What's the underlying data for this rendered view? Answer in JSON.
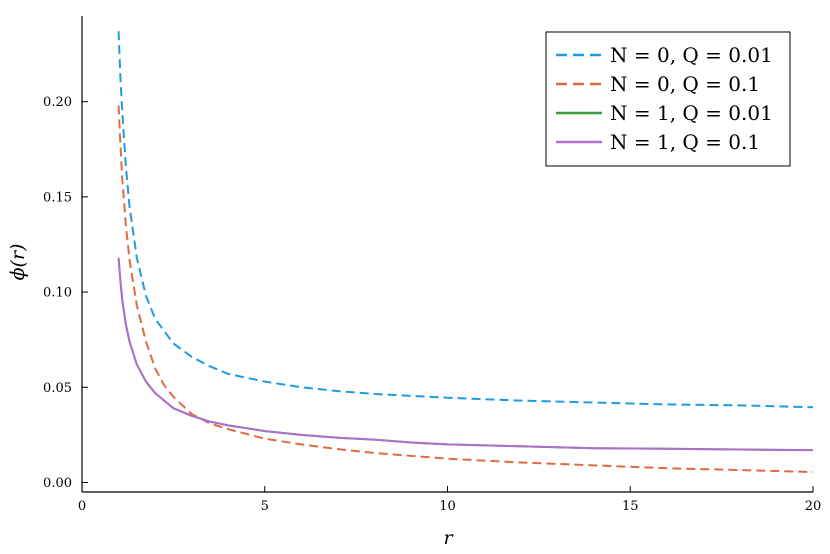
{
  "chart_data": {
    "type": "line",
    "title": "",
    "xlabel": "r",
    "ylabel": "ϕ(r)",
    "xlim": [
      0,
      20
    ],
    "ylim": [
      -0.005,
      0.245
    ],
    "xticks": [
      0,
      5,
      10,
      15,
      20
    ],
    "xtick_labels": [
      "0",
      "5",
      "10",
      "15",
      "20"
    ],
    "yticks": [
      0.0,
      0.05,
      0.1,
      0.15,
      0.2
    ],
    "ytick_labels": [
      "0.00",
      "0.05",
      "0.10",
      "0.15",
      "0.20"
    ],
    "grid": false,
    "legend_position": "top-right",
    "series": [
      {
        "name": "N = 0, Q = 0.01",
        "color": "#1f9be0",
        "dash": "dashed",
        "x": [
          1.0,
          1.05,
          1.1,
          1.2,
          1.3,
          1.5,
          1.75,
          2.0,
          2.5,
          3.0,
          3.5,
          4.0,
          5.0,
          6.0,
          7.0,
          8.0,
          9.0,
          10.0,
          12.0,
          14.0,
          16.0,
          18.0,
          20.0
        ],
        "y": [
          0.237,
          0.213,
          0.195,
          0.166,
          0.145,
          0.118,
          0.098,
          0.086,
          0.073,
          0.066,
          0.061,
          0.057,
          0.053,
          0.05,
          0.048,
          0.0465,
          0.0455,
          0.0445,
          0.043,
          0.042,
          0.041,
          0.0405,
          0.0395
        ]
      },
      {
        "name": "N = 0, Q = 0.1",
        "color": "#e06a43",
        "dash": "dashed",
        "x": [
          1.0,
          1.05,
          1.1,
          1.2,
          1.3,
          1.5,
          1.75,
          2.0,
          2.25,
          2.5,
          3.0,
          3.5,
          4.0,
          5.0,
          6.0,
          7.0,
          8.0,
          9.0,
          10.0,
          12.0,
          14.0,
          16.0,
          18.0,
          20.0
        ],
        "y": [
          0.198,
          0.178,
          0.16,
          0.135,
          0.117,
          0.093,
          0.074,
          0.06,
          0.051,
          0.045,
          0.036,
          0.031,
          0.028,
          0.023,
          0.02,
          0.0175,
          0.0155,
          0.014,
          0.0125,
          0.0105,
          0.009,
          0.0075,
          0.0065,
          0.0055
        ]
      },
      {
        "name": "N = 1, Q = 0.01",
        "color": "#3a9e3a",
        "dash": "solid",
        "x": [
          1.0,
          1.05,
          1.1,
          1.2,
          1.3,
          1.5,
          1.75,
          2.0,
          2.5,
          3.0,
          3.5,
          4.0,
          5.0,
          6.0,
          7.0,
          8.0,
          9.0,
          10.0,
          12.0,
          14.0,
          16.0,
          18.0,
          20.0
        ],
        "y": [
          0.118,
          0.106,
          0.096,
          0.083,
          0.074,
          0.062,
          0.053,
          0.047,
          0.039,
          0.035,
          0.032,
          0.03,
          0.027,
          0.025,
          0.0235,
          0.0225,
          0.021,
          0.02,
          0.019,
          0.018,
          0.0177,
          0.0173,
          0.017
        ]
      },
      {
        "name": "N = 1, Q = 0.1",
        "color": "#b06fcf",
        "dash": "solid",
        "x": [
          1.0,
          1.05,
          1.1,
          1.2,
          1.3,
          1.5,
          1.75,
          2.0,
          2.5,
          3.0,
          3.5,
          4.0,
          5.0,
          6.0,
          7.0,
          8.0,
          9.0,
          10.0,
          12.0,
          14.0,
          16.0,
          18.0,
          20.0
        ],
        "y": [
          0.118,
          0.106,
          0.096,
          0.083,
          0.074,
          0.062,
          0.053,
          0.047,
          0.039,
          0.035,
          0.032,
          0.03,
          0.027,
          0.025,
          0.0235,
          0.0225,
          0.021,
          0.02,
          0.019,
          0.018,
          0.0177,
          0.0173,
          0.017
        ]
      }
    ]
  }
}
